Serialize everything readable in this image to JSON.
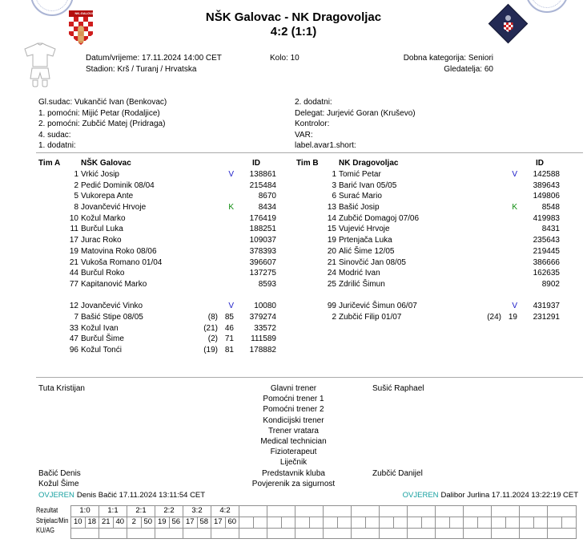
{
  "header": {
    "title": "NŠK Galovac - NK Dragovoljac",
    "score": "4:2 (1:1)",
    "home_crest_label": "NK-GALOVAC"
  },
  "match_info": {
    "datetime": "Datum/vrijeme: 17.11.2024 14:00 CET",
    "stadium": "Stadion: Krš / Turanj / Hrvatska",
    "round": "Kolo: 10",
    "age_category": "Dobna kategorija: Seniori",
    "attendance": "Gledatelja: 60"
  },
  "officials": {
    "left": [
      "Gl.sudac: Vukančić Ivan (Benkovac)",
      "1. pomoćni: Mijić Petar (Rodaljice)",
      "2. pomoćni: Zubčić Matej (Pridraga)",
      "4. sudac:",
      "1. dodatni:"
    ],
    "right": [
      "2. dodatni:",
      "Delegat: Jurjević Goran (Kruševo)",
      "Kontrolor:",
      "VAR:",
      "label.avar1.short:"
    ]
  },
  "team_a": {
    "label": "Tim A",
    "name": "NŠK Galovac",
    "id_header": "ID",
    "starters": [
      {
        "num": "1",
        "name": "Vrkić Josip",
        "mark": "V",
        "sub": "",
        "min": "",
        "id": "138861"
      },
      {
        "num": "2",
        "name": "Pedić Dominik 08/04",
        "mark": "",
        "sub": "",
        "min": "",
        "id": "215484"
      },
      {
        "num": "5",
        "name": "Vukorepa Ante",
        "mark": "",
        "sub": "",
        "min": "",
        "id": "8670"
      },
      {
        "num": "8",
        "name": "Jovančević Hrvoje",
        "mark": "K",
        "sub": "",
        "min": "",
        "id": "8434"
      },
      {
        "num": "10",
        "name": "Kožul Marko",
        "mark": "",
        "sub": "",
        "min": "",
        "id": "176419"
      },
      {
        "num": "11",
        "name": "Burčul Luka",
        "mark": "",
        "sub": "",
        "min": "",
        "id": "188251"
      },
      {
        "num": "17",
        "name": "Jurac Roko",
        "mark": "",
        "sub": "",
        "min": "",
        "id": "109037"
      },
      {
        "num": "19",
        "name": "Matovina Roko 08/06",
        "mark": "",
        "sub": "",
        "min": "",
        "id": "378393"
      },
      {
        "num": "21",
        "name": "Vukoša Romano 01/04",
        "mark": "",
        "sub": "",
        "min": "",
        "id": "396607"
      },
      {
        "num": "44",
        "name": "Burčul Roko",
        "mark": "",
        "sub": "",
        "min": "",
        "id": "137275"
      },
      {
        "num": "77",
        "name": "Kapitanović Marko",
        "mark": "",
        "sub": "",
        "min": "",
        "id": "8593"
      }
    ],
    "subs": [
      {
        "num": "12",
        "name": "Jovančević Vinko",
        "mark": "V",
        "sub": "",
        "min": "",
        "id": "10080"
      },
      {
        "num": "7",
        "name": "Bašić Stipe 08/05",
        "mark": "",
        "sub": "(8)",
        "min": "85",
        "id": "379274"
      },
      {
        "num": "33",
        "name": "Kožul Ivan",
        "mark": "",
        "sub": "(21)",
        "min": "46",
        "id": "33572"
      },
      {
        "num": "47",
        "name": "Burčul Šime",
        "mark": "",
        "sub": "(2)",
        "min": "71",
        "id": "111589"
      },
      {
        "num": "96",
        "name": "Kožul Tonći",
        "mark": "",
        "sub": "(19)",
        "min": "81",
        "id": "178882"
      }
    ]
  },
  "team_b": {
    "label": "Tim B",
    "name": "NK Dragovoljac",
    "id_header": "ID",
    "starters": [
      {
        "num": "1",
        "name": "Tomić Petar",
        "mark": "V",
        "sub": "",
        "min": "",
        "id": "142588"
      },
      {
        "num": "3",
        "name": "Barić Ivan 05/05",
        "mark": "",
        "sub": "",
        "min": "",
        "id": "389643"
      },
      {
        "num": "6",
        "name": "Surać Mario",
        "mark": "",
        "sub": "",
        "min": "",
        "id": "149806"
      },
      {
        "num": "13",
        "name": "Bašić Josip",
        "mark": "K",
        "sub": "",
        "min": "",
        "id": "8548"
      },
      {
        "num": "14",
        "name": "Zubčić Domagoj 07/06",
        "mark": "",
        "sub": "",
        "min": "",
        "id": "419983"
      },
      {
        "num": "15",
        "name": "Vujević Hrvoje",
        "mark": "",
        "sub": "",
        "min": "",
        "id": "8431"
      },
      {
        "num": "19",
        "name": "Prtenjača Luka",
        "mark": "",
        "sub": "",
        "min": "",
        "id": "235643"
      },
      {
        "num": "20",
        "name": "Alić Šime 12/05",
        "mark": "",
        "sub": "",
        "min": "",
        "id": "219445"
      },
      {
        "num": "21",
        "name": "Sinovčić Jan 08/05",
        "mark": "",
        "sub": "",
        "min": "",
        "id": "386666"
      },
      {
        "num": "24",
        "name": "Modrić Ivan",
        "mark": "",
        "sub": "",
        "min": "",
        "id": "162635"
      },
      {
        "num": "25",
        "name": "Zdrilić Šimun",
        "mark": "",
        "sub": "",
        "min": "",
        "id": "8902"
      }
    ],
    "subs": [
      {
        "num": "99",
        "name": "Juričević Šimun 06/07",
        "mark": "V",
        "sub": "",
        "min": "",
        "id": "431937"
      },
      {
        "num": "2",
        "name": "Zubčić Filip 01/07",
        "mark": "",
        "sub": "(24)",
        "min": "19",
        "id": "231291"
      }
    ]
  },
  "staff": {
    "rows": [
      {
        "label": "Glavni trener",
        "home": "Tuta Kristijan",
        "away": "Sušić Raphael"
      },
      {
        "label": "Pomoćni trener 1",
        "home": "",
        "away": ""
      },
      {
        "label": "Pomoćni trener 2",
        "home": "",
        "away": ""
      },
      {
        "label": "Kondicijski trener",
        "home": "",
        "away": ""
      },
      {
        "label": "Trener vratara",
        "home": "",
        "away": ""
      },
      {
        "label": "Medical technician",
        "home": "",
        "away": ""
      },
      {
        "label": "Fizioterapeut",
        "home": "",
        "away": ""
      },
      {
        "label": "Liječnik",
        "home": "",
        "away": ""
      },
      {
        "label": "Predstavnik kluba",
        "home": "Bačić Denis",
        "away": "Zubčić Danijel"
      },
      {
        "label": "Povjerenik za sigurnost",
        "home": "Kožul Šime",
        "away": ""
      }
    ]
  },
  "signatures": {
    "left": {
      "verified": "OVJEREN",
      "detail": "Denis Bačić 17.11.2024 13:11:54 CET"
    },
    "right": {
      "verified": "OVJEREN",
      "detail": "Dalibor Jurlina 17.11.2024 13:22:19 CET"
    }
  },
  "result_grid": {
    "row_labels": [
      "Rezultat",
      "Strijelac/Min",
      "KU/AG"
    ],
    "results": [
      "1:0",
      "1:1",
      "2:1",
      "2:2",
      "3:2",
      "4:2"
    ],
    "scorer_minutes": [
      "10",
      "18",
      "21",
      "40",
      "2",
      "50",
      "19",
      "56",
      "17",
      "58",
      "17",
      "60"
    ],
    "total_pairs": 18
  },
  "colors": {
    "goalkeeper_mark": "#1a1ac8",
    "captain_mark": "#0a8a0a",
    "verified": "#17a0a0"
  },
  "icons": {
    "home_crest": "red-white-checkered-shield",
    "away_crest": "navy-diamond-crest",
    "kit": "football-kit-outline",
    "stamps": "blue-round-ink-stamp"
  }
}
